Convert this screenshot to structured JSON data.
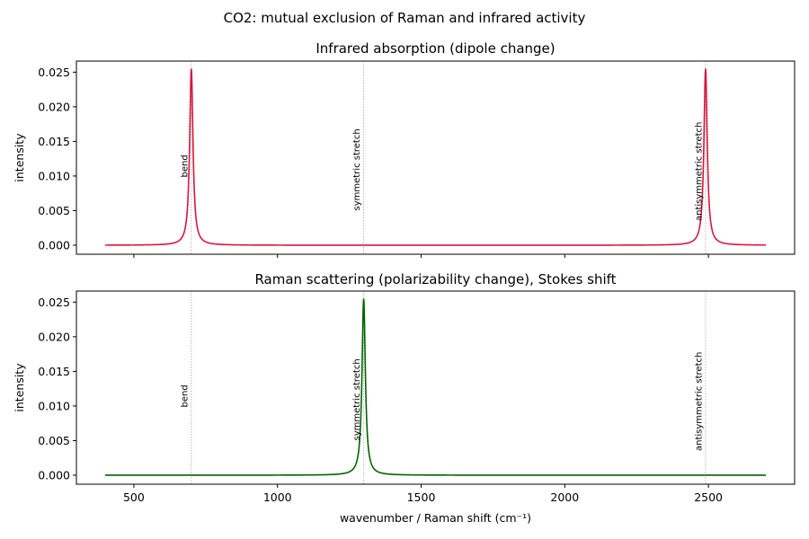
{
  "chart_data": {
    "type": "line",
    "title": "CO2: mutual exclusion of Raman and infrared activity",
    "xlabel": "wavenumber / Raman shift (cm⁻¹)",
    "xlim": [
      300,
      2800
    ],
    "xticks": [
      500,
      1000,
      1500,
      2000,
      2500
    ],
    "x_range": [
      400,
      2700
    ],
    "peak_width": 7,
    "modes": [
      {
        "label": "bend",
        "position": 700
      },
      {
        "label": "symmetric stretch",
        "position": 1300
      },
      {
        "label": "antisymmetric stretch",
        "position": 2490
      }
    ],
    "panels": [
      {
        "title": "Infrared absorption (dipole change)",
        "ylabel": "intensity",
        "ylim": [
          -0.0013,
          0.0266
        ],
        "yticks": [
          0.0,
          0.005,
          0.01,
          0.015,
          0.02,
          0.025
        ],
        "ytick_labels": [
          "0.000",
          "0.005",
          "0.010",
          "0.015",
          "0.020",
          "0.025"
        ],
        "color": "#d6173f",
        "series": [
          {
            "active_peaks": [
              700,
              2490
            ],
            "peak_height": 0.0255
          }
        ],
        "annotation_y": [
          0.0098,
          0.005,
          0.0035
        ]
      },
      {
        "title": "Raman scattering (polarizability change), Stokes shift",
        "ylabel": "intensity",
        "ylim": [
          -0.0013,
          0.0266
        ],
        "yticks": [
          0.0,
          0.005,
          0.01,
          0.015,
          0.02,
          0.025
        ],
        "ytick_labels": [
          "0.000",
          "0.005",
          "0.010",
          "0.015",
          "0.020",
          "0.025"
        ],
        "color": "#006400",
        "series": [
          {
            "active_peaks": [
              1300
            ],
            "peak_height": 0.0255
          }
        ],
        "annotation_y": [
          0.0098,
          0.005,
          0.0035
        ]
      }
    ]
  }
}
